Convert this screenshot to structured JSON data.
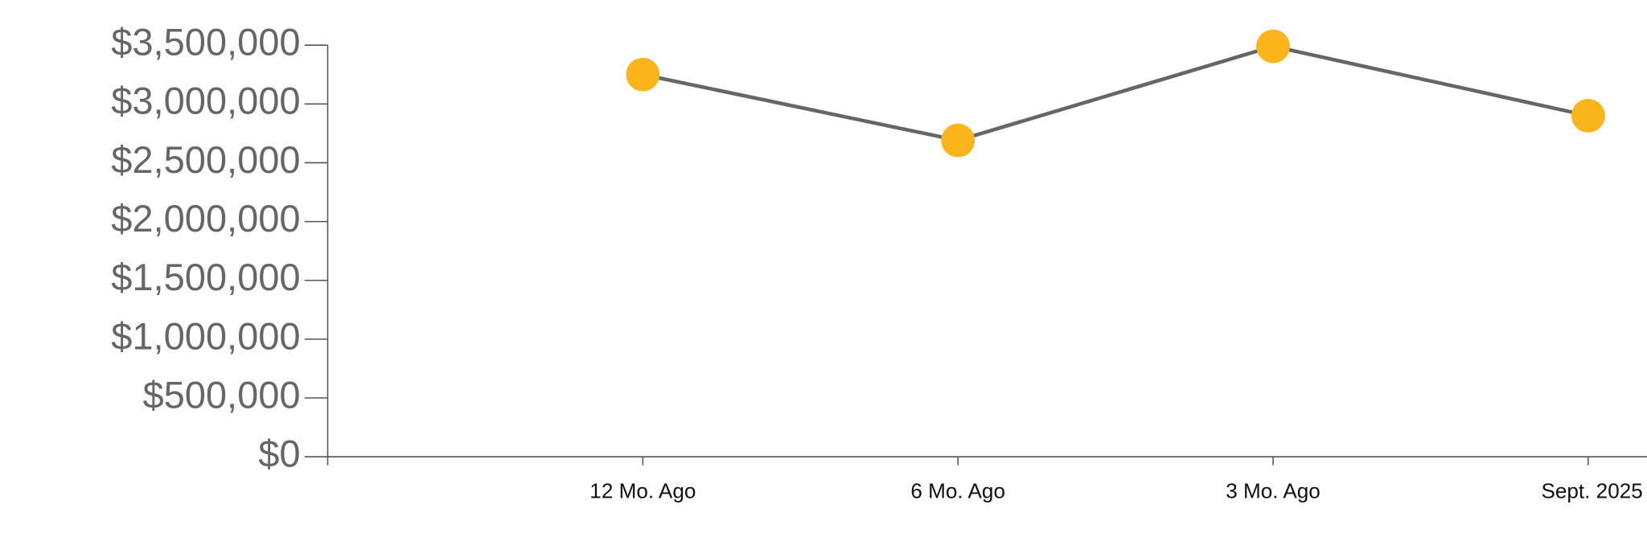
{
  "chart_data": {
    "type": "line",
    "categories": [
      null,
      "12 Mo. Ago",
      "6 Mo. Ago",
      "3 Mo. Ago",
      "Sept. 2025"
    ],
    "series": [
      {
        "color": "#fbb41a",
        "line_color": "#666666",
        "values": [
          null,
          3250000,
          2690000,
          3490000,
          2900000
        ]
      }
    ],
    "ylim": [
      0,
      3500000
    ],
    "yticks": [
      {
        "value": 0,
        "label": "$0"
      },
      {
        "value": 500000,
        "label": "$500,000"
      },
      {
        "value": 1000000,
        "label": "$1,000,000"
      },
      {
        "value": 1500000,
        "label": "$1,500,000"
      },
      {
        "value": 2000000,
        "label": "$2,000,000"
      },
      {
        "value": 2500000,
        "label": "$2,500,000"
      },
      {
        "value": 3000000,
        "label": "$3,000,000"
      },
      {
        "value": 3500000,
        "label": "$3,500,000"
      }
    ],
    "grid": false
  }
}
